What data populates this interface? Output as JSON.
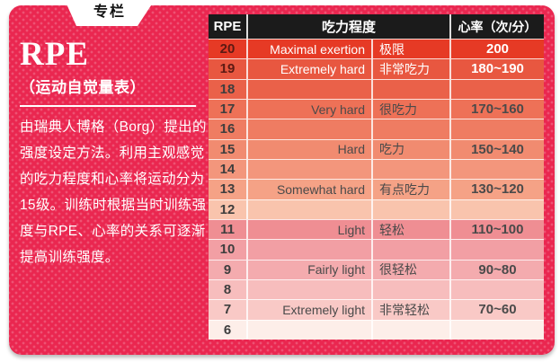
{
  "tab": {
    "label": "专栏"
  },
  "panel": {
    "title": "RPE",
    "subtitle": "（运动自觉量表）",
    "paragraph_lines": [
      "由瑞典人博格（Borg）提出的",
      "强度设定方法。利用主观感觉",
      "的吃力程度和心率将运动分为",
      "15级。训练时根据当时训练强",
      "度与RPE、心率的关系可逐渐",
      "提高训练强度。"
    ]
  },
  "table": {
    "headers": {
      "rpe": "RPE",
      "effort": "吃力程度",
      "heart_rate": "心率（次/分）"
    },
    "rows": [
      {
        "rpe": "20",
        "en": "Maximal exertion",
        "cn": "极限",
        "hr": "200",
        "bg": "#e63a25",
        "light": true
      },
      {
        "rpe": "19",
        "en": "Extremely hard",
        "cn": "非常吃力",
        "hr": "180~190",
        "bg": "#e85740",
        "light": true
      },
      {
        "rpe": "18",
        "en": "",
        "cn": "",
        "hr": "",
        "bg": "#ea6149",
        "light": false
      },
      {
        "rpe": "17",
        "en": "Very hard",
        "cn": "很吃力",
        "hr": "170~160",
        "bg": "#ee7157",
        "light": false
      },
      {
        "rpe": "16",
        "en": "",
        "cn": "",
        "hr": "",
        "bg": "#ef7c62",
        "light": false
      },
      {
        "rpe": "15",
        "en": "Hard",
        "cn": "吃力",
        "hr": "150~140",
        "bg": "#f18b70",
        "light": false
      },
      {
        "rpe": "14",
        "en": "",
        "cn": "",
        "hr": "",
        "bg": "#f3967c",
        "light": false
      },
      {
        "rpe": "13",
        "en": "Somewhat hard",
        "cn": "有点吃力",
        "hr": "130~120",
        "bg": "#f5a286",
        "light": false
      },
      {
        "rpe": "12",
        "en": "",
        "cn": "",
        "hr": "",
        "bg": "#f9c4ad",
        "light": false
      },
      {
        "rpe": "11",
        "en": "Light",
        "cn": "轻松",
        "hr": "110~100",
        "bg": "#ef8e93",
        "light": false
      },
      {
        "rpe": "10",
        "en": "",
        "cn": "",
        "hr": "",
        "bg": "#f29fa4",
        "light": false
      },
      {
        "rpe": "9",
        "en": "Fairly light",
        "cn": "很轻松",
        "hr": "90~80",
        "bg": "#f4abae",
        "light": false
      },
      {
        "rpe": "8",
        "en": "",
        "cn": "",
        "hr": "",
        "bg": "#f7bdbd",
        "light": false
      },
      {
        "rpe": "7",
        "en": "Extremely light",
        "cn": "非常轻松",
        "hr": "70~60",
        "bg": "#f9c9c6",
        "light": false
      },
      {
        "rpe": "6",
        "en": "",
        "cn": "",
        "hr": "",
        "bg": "#fdeee9",
        "light": false
      }
    ]
  },
  "colors": {
    "card_bg": "#ea2750",
    "card_dot": "#f1577a",
    "header_bg": "#1b1b1b",
    "header_text": "#ffffff",
    "row_dark_text": "#4a4a4a",
    "row_light_text": "#ffffff",
    "num_dark": "#3e3e3e",
    "num_maroon": "#5c1a13"
  },
  "chart_data": {
    "type": "table",
    "title": "RPE（运动自觉量表）",
    "columns": [
      "RPE",
      "吃力程度(英)",
      "吃力程度(中)",
      "心率（次/分）"
    ],
    "rows": [
      [
        "20",
        "Maximal exertion",
        "极限",
        "200"
      ],
      [
        "19",
        "Extremely hard",
        "非常吃力",
        "180~190"
      ],
      [
        "18",
        "",
        "",
        ""
      ],
      [
        "17",
        "Very hard",
        "很吃力",
        "170~160"
      ],
      [
        "16",
        "",
        "",
        ""
      ],
      [
        "15",
        "Hard",
        "吃力",
        "150~140"
      ],
      [
        "14",
        "",
        "",
        ""
      ],
      [
        "13",
        "Somewhat hard",
        "有点吃力",
        "130~120"
      ],
      [
        "12",
        "",
        "",
        ""
      ],
      [
        "11",
        "Light",
        "轻松",
        "110~100"
      ],
      [
        "10",
        "",
        "",
        ""
      ],
      [
        "9",
        "Fairly light",
        "很轻松",
        "90~80"
      ],
      [
        "8",
        "",
        "",
        ""
      ],
      [
        "7",
        "Extremely light",
        "非常轻松",
        "70~60"
      ],
      [
        "6",
        "",
        "",
        ""
      ]
    ]
  }
}
